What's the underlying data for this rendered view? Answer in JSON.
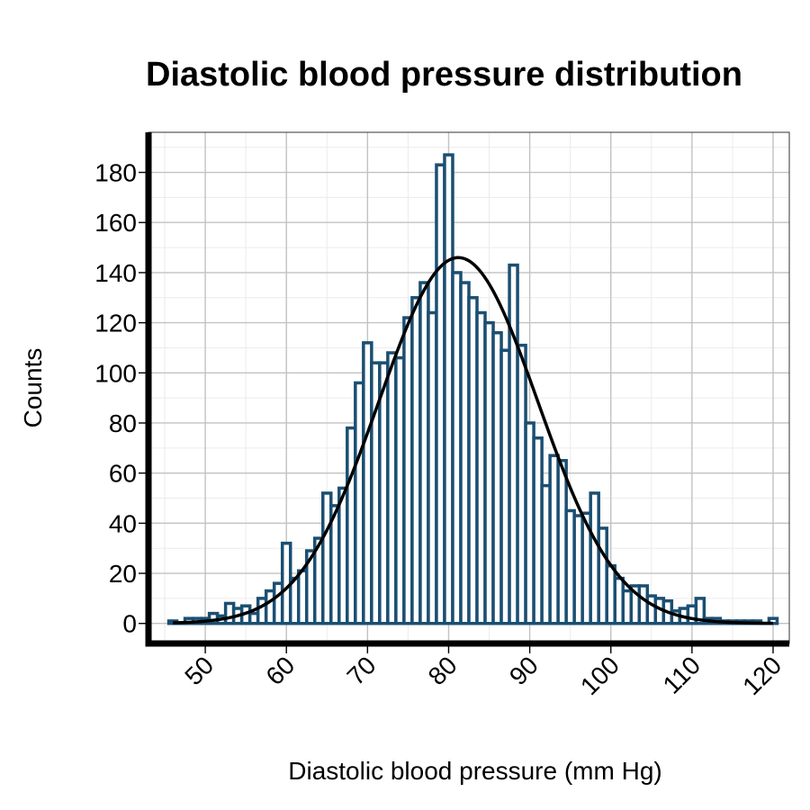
{
  "chart_data": {
    "type": "bar",
    "title": "Diastolic blood pressure distribution",
    "xlabel": "Diastolic blood pressure (mm Hg)",
    "ylabel": "Counts",
    "xlim": [
      43,
      122
    ],
    "ylim": [
      -8,
      196
    ],
    "x_ticks": [
      50,
      60,
      70,
      80,
      90,
      100,
      110,
      120
    ],
    "y_ticks": [
      0,
      20,
      40,
      60,
      80,
      100,
      120,
      140,
      160,
      180
    ],
    "grid": true,
    "bin_width": 1,
    "bar_fill": "#ffffff",
    "bar_outline": "#1b4f72",
    "curve_color": "#000000",
    "bins": {
      "x": [
        46,
        47,
        48,
        49,
        50,
        51,
        52,
        53,
        54,
        55,
        56,
        57,
        58,
        59,
        60,
        61,
        62,
        63,
        64,
        65,
        66,
        67,
        68,
        69,
        70,
        71,
        72,
        73,
        74,
        75,
        76,
        77,
        78,
        79,
        80,
        81,
        82,
        83,
        84,
        85,
        86,
        87,
        88,
        89,
        90,
        91,
        92,
        93,
        94,
        95,
        96,
        97,
        98,
        99,
        100,
        101,
        102,
        103,
        104,
        105,
        106,
        107,
        108,
        109,
        110,
        111,
        112,
        113,
        114,
        115,
        116,
        117,
        118,
        119,
        120
      ],
      "counts": [
        1,
        0,
        2,
        2,
        2,
        4,
        3,
        8,
        6,
        7,
        4,
        10,
        13,
        16,
        32,
        18,
        21,
        29,
        34,
        52,
        47,
        54,
        78,
        96,
        112,
        104,
        104,
        108,
        106,
        122,
        130,
        136,
        124,
        183,
        187,
        140,
        136,
        130,
        124,
        120,
        116,
        109,
        143,
        111,
        80,
        74,
        55,
        67,
        65,
        45,
        43,
        44,
        52,
        38,
        23,
        18,
        13,
        15,
        15,
        11,
        10,
        9,
        5,
        6,
        7,
        10,
        2,
        2,
        1,
        1,
        1,
        1,
        1,
        0,
        2
      ]
    },
    "normal_fit": {
      "mean": 81.2,
      "sd": 9.8,
      "peak": 146
    }
  }
}
